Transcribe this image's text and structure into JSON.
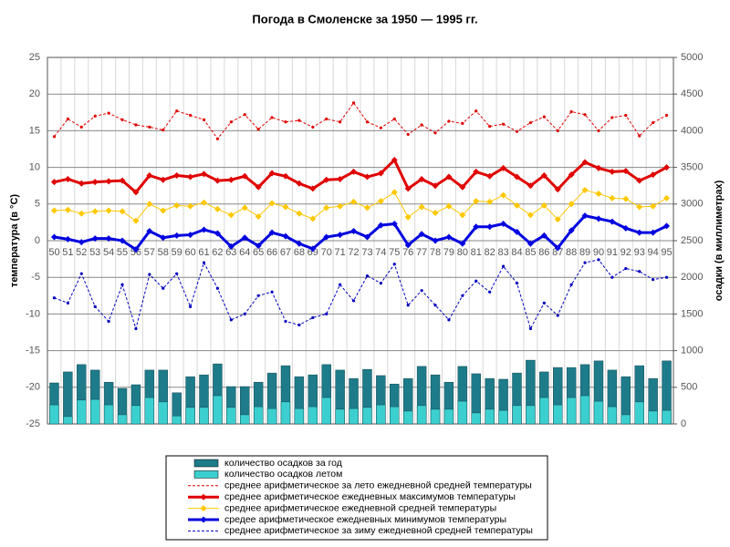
{
  "chart_data": {
    "type": "combo",
    "title": "Погода в Смоленске за 1950 — 1995 гг.",
    "y_label": "температура (в °С)",
    "y2_label": "осадки (в миллиметрах)",
    "categories": [
      "50",
      "51",
      "52",
      "53",
      "54",
      "55",
      "56",
      "57",
      "58",
      "59",
      "60",
      "61",
      "62",
      "63",
      "64",
      "65",
      "66",
      "67",
      "68",
      "69",
      "70",
      "71",
      "72",
      "73",
      "74",
      "75",
      "76",
      "77",
      "78",
      "79",
      "80",
      "81",
      "82",
      "83",
      "84",
      "85",
      "86",
      "87",
      "88",
      "89",
      "90",
      "91",
      "92",
      "93",
      "94",
      "95"
    ],
    "ylim": [
      -25,
      25
    ],
    "yticks": [
      -25,
      -20,
      -15,
      -10,
      -5,
      0,
      5,
      10,
      15,
      20,
      25
    ],
    "y2lim": [
      0,
      5000
    ],
    "y2ticks": [
      0,
      500,
      1000,
      1500,
      2000,
      2500,
      3000,
      3500,
      4000,
      4500,
      5000
    ],
    "grid": true,
    "legend": "bottom",
    "series": [
      {
        "name": "количество осадков за год",
        "kind": "bar",
        "axis": "y2",
        "color": "#1e7b8a",
        "values": [
          560,
          710,
          810,
          735,
          570,
          485,
          535,
          735,
          735,
          425,
          645,
          670,
          820,
          510,
          510,
          570,
          695,
          795,
          645,
          670,
          810,
          735,
          620,
          745,
          660,
          545,
          620,
          785,
          670,
          570,
          785,
          685,
          620,
          610,
          695,
          870,
          710,
          770,
          770,
          810,
          860,
          735,
          645,
          795,
          620,
          860
        ]
      },
      {
        "name": "количество осадков летом",
        "kind": "bar",
        "axis": "y2",
        "color": "#3ccfcf",
        "values": [
          260,
          100,
          325,
          335,
          260,
          125,
          250,
          360,
          300,
          110,
          225,
          225,
          385,
          225,
          125,
          235,
          210,
          300,
          210,
          235,
          360,
          200,
          210,
          225,
          260,
          235,
          175,
          250,
          200,
          200,
          310,
          150,
          200,
          185,
          250,
          250,
          360,
          260,
          360,
          385,
          310,
          235,
          125,
          300,
          175,
          185
        ]
      },
      {
        "name": "среднее арифметическое за лето ежедневной средней температуры",
        "kind": "line",
        "dash": true,
        "width": 1,
        "marker": "dot",
        "color": "#e00000",
        "values": [
          14.2,
          16.6,
          15.5,
          17.0,
          17.4,
          16.5,
          15.8,
          15.5,
          15.1,
          17.7,
          17.1,
          16.5,
          13.9,
          16.2,
          17.2,
          15.2,
          16.8,
          16.2,
          16.4,
          15.5,
          16.6,
          16.2,
          18.8,
          16.2,
          15.4,
          16.6,
          14.5,
          15.8,
          14.7,
          16.3,
          16.0,
          17.7,
          15.6,
          15.9,
          14.9,
          16.1,
          16.9,
          15.0,
          17.6,
          17.2,
          15.0,
          16.8,
          17.1,
          14.3,
          16.1,
          17.1
        ]
      },
      {
        "name": "среднее арифметическое ежедневных максимумов температуры",
        "kind": "line",
        "dash": false,
        "width": 3,
        "marker": "diamond",
        "color": "#e00000",
        "values": [
          8.0,
          8.4,
          7.8,
          8.0,
          8.1,
          8.2,
          6.6,
          8.9,
          8.3,
          8.9,
          8.7,
          9.1,
          8.2,
          8.3,
          8.8,
          7.3,
          9.2,
          8.8,
          7.8,
          7.1,
          8.3,
          8.4,
          9.4,
          8.7,
          9.2,
          11.0,
          7.1,
          8.4,
          7.5,
          8.7,
          7.3,
          9.4,
          8.8,
          9.9,
          8.7,
          7.5,
          8.9,
          7.0,
          9.0,
          10.7,
          9.9,
          9.4,
          9.5,
          8.2,
          9.0,
          10.0
        ]
      },
      {
        "name": "среднее арифметическое ежедневной средней температуры",
        "kind": "line",
        "dash": false,
        "width": 1,
        "marker": "diamond",
        "color": "#ffc800",
        "values": [
          4.1,
          4.2,
          3.7,
          4.0,
          4.1,
          4.0,
          2.7,
          5.0,
          4.1,
          4.8,
          4.7,
          5.2,
          4.3,
          3.5,
          4.5,
          3.3,
          5.1,
          4.6,
          3.7,
          3.0,
          4.5,
          4.7,
          5.3,
          4.5,
          5.4,
          6.6,
          3.2,
          4.6,
          3.8,
          4.7,
          3.5,
          5.4,
          5.3,
          6.2,
          4.8,
          3.5,
          4.8,
          2.9,
          5.0,
          6.9,
          6.4,
          5.8,
          5.7,
          4.6,
          4.7,
          5.8
        ]
      },
      {
        "name": "средее арифметическое ежедневных минимумов температуры",
        "kind": "line",
        "dash": false,
        "width": 3,
        "marker": "diamond",
        "color": "#0000e0",
        "values": [
          0.5,
          0.2,
          -0.2,
          0.3,
          0.3,
          0.0,
          -1.2,
          1.3,
          0.4,
          0.7,
          0.8,
          1.5,
          1.0,
          -0.8,
          0.4,
          -0.7,
          1.1,
          0.6,
          -0.4,
          -1.1,
          0.5,
          0.8,
          1.3,
          0.5,
          2.1,
          2.3,
          -0.6,
          0.9,
          0.0,
          0.5,
          -0.4,
          1.9,
          1.9,
          2.3,
          1.2,
          -0.4,
          0.7,
          -1.0,
          1.4,
          3.4,
          3.0,
          2.6,
          1.7,
          1.1,
          1.1,
          2.0
        ]
      },
      {
        "name": "среднее арифметическое за зиму ежедневной средней температуры",
        "kind": "line",
        "dash": true,
        "width": 1,
        "marker": "dot",
        "color": "#0000c0",
        "values": [
          -7.8,
          -8.5,
          -4.5,
          -9.0,
          -11.0,
          -6.0,
          -12.0,
          -4.6,
          -6.5,
          -4.5,
          -9.0,
          -3.0,
          -6.5,
          -10.8,
          -10.0,
          -7.5,
          -7.0,
          -11.0,
          -11.5,
          -10.5,
          -10.0,
          -6.0,
          -8.2,
          -4.8,
          -5.8,
          -3.2,
          -8.8,
          -6.8,
          -8.8,
          -10.8,
          -7.5,
          -5.5,
          -7.0,
          -3.5,
          -5.8,
          -12.0,
          -8.5,
          -10.2,
          -6.0,
          -3.0,
          -2.6,
          -5.0,
          -3.8,
          -4.2,
          -5.3,
          -5.0
        ]
      }
    ]
  }
}
